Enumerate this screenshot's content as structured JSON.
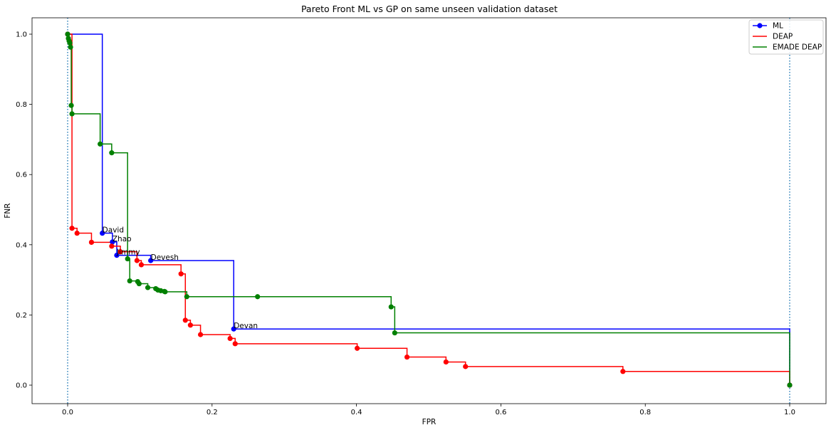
{
  "chart_data": {
    "type": "line",
    "title": "Pareto Front ML vs GP on same unseen validation dataset",
    "xlabel": "FPR",
    "ylabel": "FNR",
    "xlim": [
      -0.05,
      1.05
    ],
    "ylim": [
      -0.05,
      1.05
    ],
    "x_ticks": [
      0.0,
      0.2,
      0.4,
      0.6,
      0.8,
      1.0
    ],
    "y_ticks": [
      0.0,
      0.2,
      0.4,
      0.6,
      0.8,
      1.0
    ],
    "x_tick_labels": [
      "0.0",
      "0.2",
      "0.4",
      "0.6",
      "0.8",
      "1.0"
    ],
    "y_tick_labels": [
      "0.0",
      "0.2",
      "0.4",
      "0.6",
      "0.8",
      "1.0"
    ],
    "grid": false,
    "legend_position": "top-right",
    "drawstyle": "steps-post",
    "vlines": [
      {
        "x": 0.0,
        "color": "#1f77b4",
        "style": "dotted"
      },
      {
        "x": 1.0,
        "color": "#1f77b4",
        "style": "dotted"
      }
    ],
    "series": [
      {
        "name": "ML",
        "color": "#0000ff",
        "x": [
          0.0,
          0.048,
          0.062,
          0.068,
          0.115,
          0.23,
          1.0
        ],
        "y": [
          1.0,
          0.433,
          0.408,
          0.37,
          0.355,
          0.16,
          0.0
        ]
      },
      {
        "name": "DEAP",
        "color": "#ff0000",
        "x": [
          0.0,
          0.006,
          0.013,
          0.033,
          0.061,
          0.073,
          0.096,
          0.102,
          0.157,
          0.163,
          0.17,
          0.184,
          0.225,
          0.232,
          0.401,
          0.47,
          0.524,
          0.551,
          0.769,
          1.0
        ],
        "y": [
          1.0,
          0.447,
          0.433,
          0.407,
          0.396,
          0.38,
          0.355,
          0.343,
          0.317,
          0.185,
          0.171,
          0.144,
          0.133,
          0.118,
          0.105,
          0.08,
          0.066,
          0.053,
          0.039,
          0.0
        ]
      },
      {
        "name": "EMADE DEAP",
        "color": "#008000",
        "x": [
          0.0,
          0.001,
          0.002,
          0.003,
          0.004,
          0.005,
          0.006,
          0.045,
          0.061,
          0.083,
          0.086,
          0.097,
          0.099,
          0.111,
          0.122,
          0.125,
          0.129,
          0.134,
          0.135,
          0.165,
          0.263,
          0.448,
          0.453,
          1.0
        ],
        "y": [
          1.0,
          0.988,
          0.981,
          0.975,
          0.963,
          0.797,
          0.773,
          0.687,
          0.662,
          0.36,
          0.297,
          0.295,
          0.289,
          0.278,
          0.275,
          0.271,
          0.269,
          0.267,
          0.266,
          0.252,
          0.252,
          0.223,
          0.149,
          0.0
        ]
      }
    ],
    "annotations": [
      {
        "text": "David",
        "x": 0.048,
        "y": 0.433
      },
      {
        "text": "Zhao",
        "x": 0.062,
        "y": 0.408
      },
      {
        "text": "Jimmy",
        "x": 0.068,
        "y": 0.37
      },
      {
        "text": "Devesh",
        "x": 0.115,
        "y": 0.355
      },
      {
        "text": "Devan",
        "x": 0.23,
        "y": 0.16
      }
    ]
  }
}
